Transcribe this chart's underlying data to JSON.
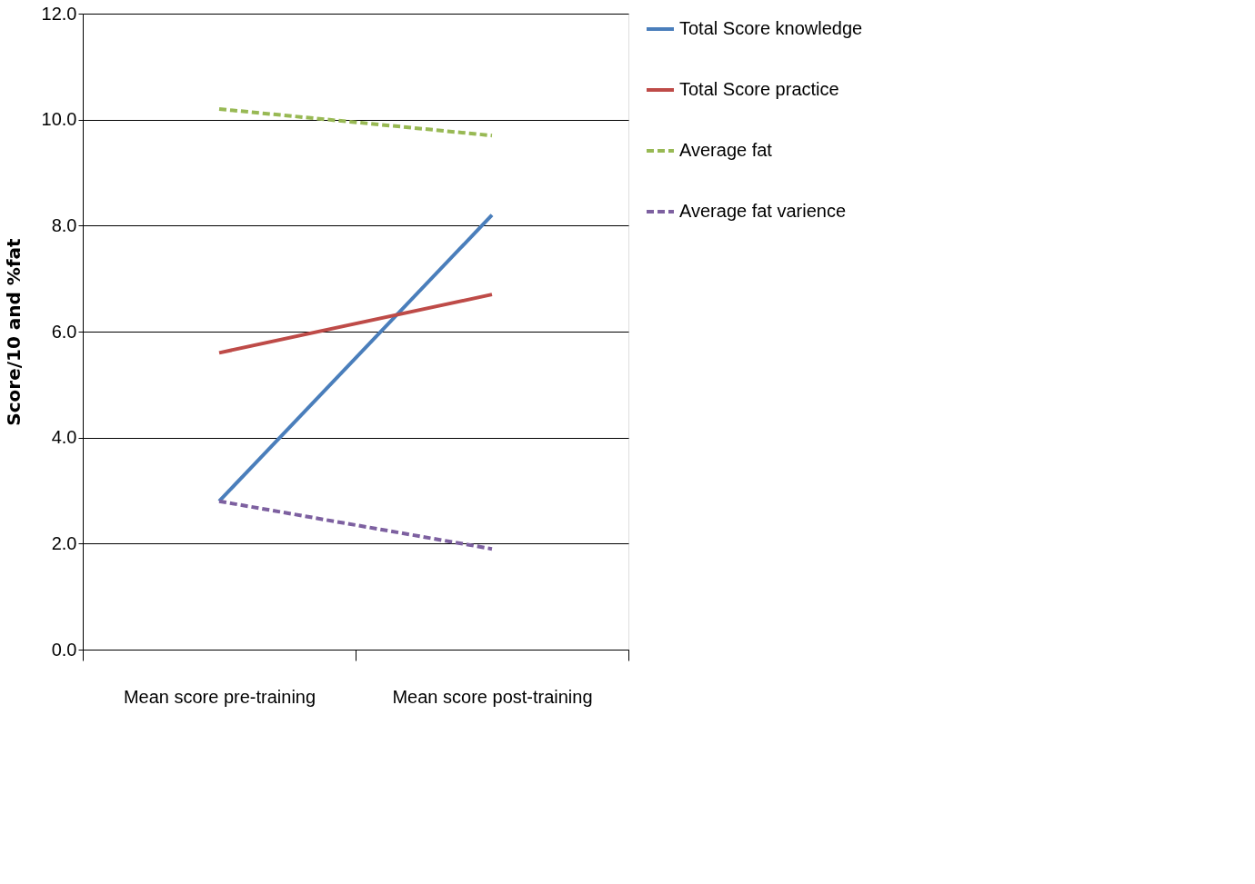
{
  "chart_data": {
    "type": "line",
    "ylabel": "Score/10 and %fat",
    "categories": [
      "Mean score pre-training",
      "Mean score post-training"
    ],
    "series": [
      {
        "name": "Total Score knowledge",
        "color": "#4a7ebb",
        "values": [
          2.8,
          8.2
        ],
        "line_style": "solid"
      },
      {
        "name": "Total Score practice",
        "color": "#be4b48",
        "values": [
          5.6,
          6.7
        ],
        "line_style": "solid"
      },
      {
        "name": "Average fat",
        "color": "#98b954",
        "values": [
          10.2,
          9.7
        ],
        "line_style": "dashed"
      },
      {
        "name": "Average fat varience",
        "color": "#7d60a0",
        "values": [
          2.8,
          1.9
        ],
        "line_style": "dashed"
      }
    ],
    "ylim": [
      0,
      12
    ],
    "yticks": [
      {
        "value": 0,
        "label": "0.0"
      },
      {
        "value": 2,
        "label": "2.0"
      },
      {
        "value": 4,
        "label": "4.0"
      },
      {
        "value": 6,
        "label": "6.0"
      },
      {
        "value": 8,
        "label": "8.0"
      },
      {
        "value": 10,
        "label": "10.0"
      },
      {
        "value": 12,
        "label": "12.0"
      }
    ],
    "grid": "y",
    "legend": "right",
    "marker": "none"
  }
}
